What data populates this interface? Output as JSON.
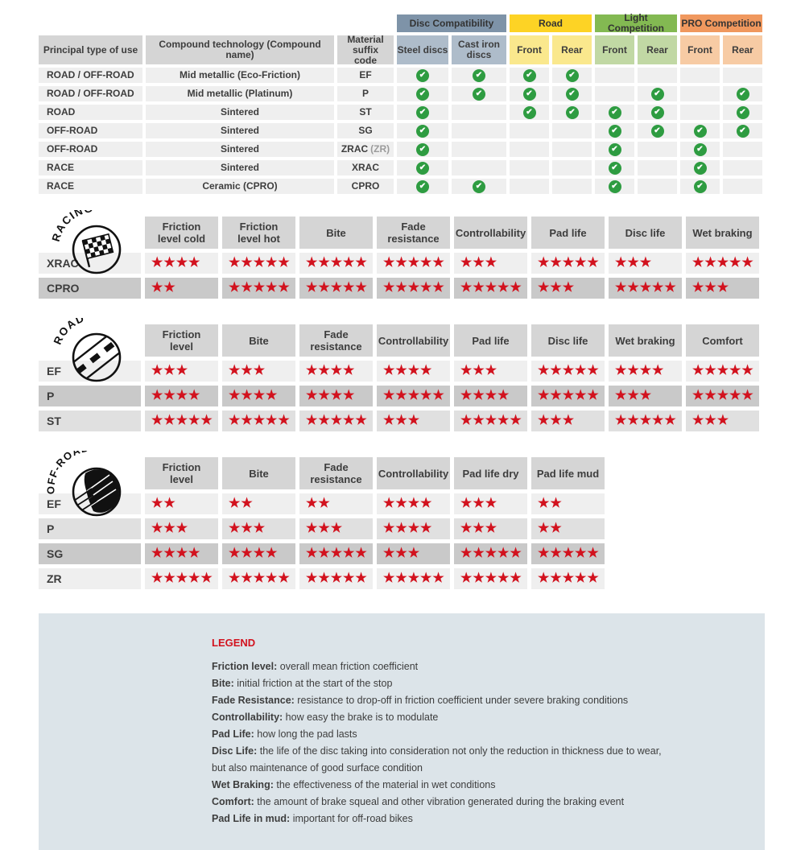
{
  "colors": {
    "star_red": "#d2121e",
    "check_green": "#2e9c41",
    "row_light": "#efefef",
    "row_medium": "#e0e0e0",
    "row_dark": "#c9c9c9",
    "header_gray": "#d5d5d5",
    "legend_bg": "#dce4e9",
    "legend_title_red": "#d2121e"
  },
  "compat_table": {
    "col_headers": [
      "Principal type of use",
      "Compound technology (Compound name)",
      "Material suffix code"
    ],
    "groups": [
      {
        "label": "Disc Compatibility",
        "color": "#7e93a8",
        "sub_color": "#aebcca",
        "subs": [
          "Steel discs",
          "Cast iron discs"
        ]
      },
      {
        "label": "Road",
        "color": "#fdd325",
        "sub_color": "#fae88d",
        "subs": [
          "Front",
          "Rear"
        ]
      },
      {
        "label": "Light Competition",
        "color": "#83b952",
        "sub_color": "#c1d8a4",
        "subs": [
          "Front",
          "Rear"
        ]
      },
      {
        "label": "PRO Competition",
        "color": "#f0985e",
        "sub_color": "#f7cba4",
        "subs": [
          "Front",
          "Rear"
        ]
      }
    ],
    "rows": [
      {
        "use": "ROAD / OFF-ROAD",
        "tech": "Mid metallic (Eco-Friction)",
        "code": "EF",
        "code_note": "",
        "checks": [
          1,
          1,
          1,
          1,
          0,
          0,
          0,
          0
        ]
      },
      {
        "use": "ROAD / OFF-ROAD",
        "tech": "Mid metallic (Platinum)",
        "code": "P",
        "code_note": "",
        "checks": [
          1,
          1,
          1,
          1,
          0,
          1,
          0,
          1
        ]
      },
      {
        "use": "ROAD",
        "tech": "Sintered",
        "code": "ST",
        "code_note": "",
        "checks": [
          1,
          0,
          1,
          1,
          1,
          1,
          0,
          1
        ]
      },
      {
        "use": "OFF-ROAD",
        "tech": "Sintered",
        "code": "SG",
        "code_note": "",
        "checks": [
          1,
          0,
          0,
          0,
          1,
          1,
          1,
          1
        ]
      },
      {
        "use": "OFF-ROAD",
        "tech": "Sintered",
        "code": "ZRAC",
        "code_note": "(ZR)",
        "checks": [
          1,
          0,
          0,
          0,
          1,
          0,
          1,
          0
        ]
      },
      {
        "use": "RACE",
        "tech": "Sintered",
        "code": "XRAC",
        "code_note": "",
        "checks": [
          1,
          0,
          0,
          0,
          1,
          0,
          1,
          0
        ]
      },
      {
        "use": "RACE",
        "tech": "Ceramic (CPRO)",
        "code": "CPRO",
        "code_note": "",
        "checks": [
          1,
          1,
          0,
          0,
          1,
          0,
          1,
          0
        ]
      }
    ]
  },
  "rating_tables": [
    {
      "id": "racing",
      "icon_label": "RACING",
      "columns": [
        "Friction level cold",
        "Friction level hot",
        "Bite",
        "Fade resistance",
        "Controllability",
        "Pad life",
        "Disc life",
        "Wet braking"
      ],
      "rows": [
        {
          "code": "XRAC",
          "shade": "light",
          "values": [
            4,
            5,
            5,
            5,
            3,
            5,
            3,
            5
          ]
        },
        {
          "code": "CPRO",
          "shade": "dark",
          "values": [
            2,
            5,
            5,
            5,
            5,
            3,
            5,
            3
          ]
        }
      ]
    },
    {
      "id": "road",
      "icon_label": "ROAD",
      "columns": [
        "Friction level",
        "Bite",
        "Fade resistance",
        "Controllability",
        "Pad life",
        "Disc life",
        "Wet braking",
        "Comfort"
      ],
      "rows": [
        {
          "code": "EF",
          "shade": "light",
          "values": [
            3,
            3,
            4,
            4,
            3,
            5,
            4,
            5
          ]
        },
        {
          "code": "P",
          "shade": "dark",
          "values": [
            4,
            4,
            4,
            5,
            4,
            5,
            3,
            5
          ]
        },
        {
          "code": "ST",
          "shade": "medium",
          "values": [
            5,
            5,
            5,
            3,
            5,
            3,
            5,
            3
          ]
        }
      ]
    },
    {
      "id": "offroad",
      "icon_label": "OFF-ROAD",
      "columns": [
        "Friction level",
        "Bite",
        "Fade resistance",
        "Controllability",
        "Pad life dry",
        "Pad life mud"
      ],
      "rows": [
        {
          "code": "EF",
          "shade": "light",
          "values": [
            2,
            2,
            2,
            4,
            3,
            2
          ]
        },
        {
          "code": "P",
          "shade": "medium",
          "values": [
            3,
            3,
            3,
            4,
            3,
            2
          ]
        },
        {
          "code": "SG",
          "shade": "dark",
          "values": [
            4,
            4,
            5,
            3,
            5,
            5
          ]
        },
        {
          "code": "ZR",
          "shade": "light",
          "values": [
            5,
            5,
            5,
            5,
            5,
            5
          ]
        }
      ]
    }
  ],
  "legend": {
    "title": "LEGEND",
    "items": [
      {
        "term": "Friction level",
        "desc": "overall mean friction coefficient"
      },
      {
        "term": "Bite",
        "desc": "initial friction at the start of the stop"
      },
      {
        "term": "Fade Resistance",
        "desc": "resistance to drop-off in friction coefficient under severe braking conditions"
      },
      {
        "term": "Controllability",
        "desc": "how easy the brake is to modulate"
      },
      {
        "term": "Pad Life",
        "desc": "how long the pad lasts"
      },
      {
        "term": "Disc Life",
        "desc": "the life of the disc taking into consideration not only the reduction in thickness due to wear,\nbut also maintenance of good surface condition"
      },
      {
        "term": "Wet Braking",
        "desc": "the effectiveness of the material in wet conditions"
      },
      {
        "term": "Comfort",
        "desc": "the amount of brake squeal and other vibration generated during the braking event"
      },
      {
        "term": "Pad Life in mud",
        "desc": "important for off-road bikes"
      }
    ]
  }
}
